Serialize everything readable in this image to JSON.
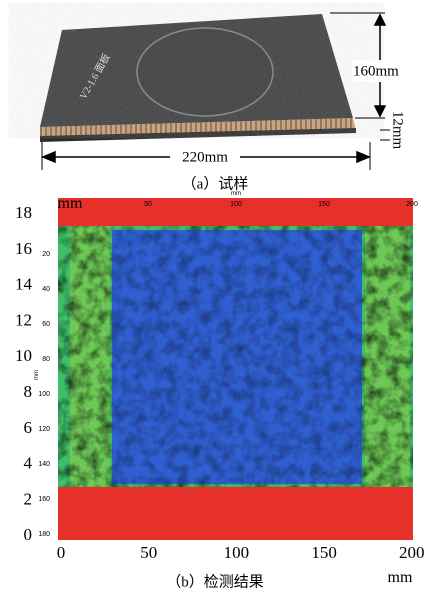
{
  "figure_a": {
    "dim_width": "160mm",
    "dim_thickness": "12mm",
    "dim_length": "220mm",
    "caption": "（a）试样"
  },
  "figure_b": {
    "caption": "（b）检测结果",
    "outer_x_ticks": [
      "0",
      "50",
      "100",
      "150",
      "200"
    ],
    "outer_x_unit": "mm",
    "outer_y_ticks": [
      "18",
      "16",
      "14",
      "12",
      "10",
      "8",
      "6",
      "4",
      "2",
      "0"
    ],
    "outer_y_unit": "mm",
    "inner_x_ticks": [
      "50",
      "100",
      "150",
      "200"
    ],
    "inner_x_unit": "mm",
    "inner_y_ticks": [
      "20",
      "40",
      "60",
      "80",
      "100",
      "120",
      "140",
      "160",
      "180"
    ],
    "inner_y_unit": "mm"
  }
}
